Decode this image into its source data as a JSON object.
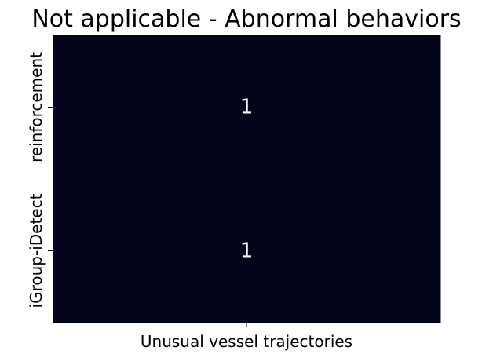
{
  "chart_data": {
    "type": "heatmap",
    "title": "Not applicable - Abnormal behaviors",
    "x_categories": [
      "Unusual vessel trajectories"
    ],
    "y_categories": [
      "reinforcement",
      "iGroup-iDetect"
    ],
    "values": [
      [
        1
      ],
      [
        1
      ]
    ],
    "cell_color": "#03051a",
    "annotation_color": "#ffffff",
    "colorbar": false,
    "grid": false
  }
}
